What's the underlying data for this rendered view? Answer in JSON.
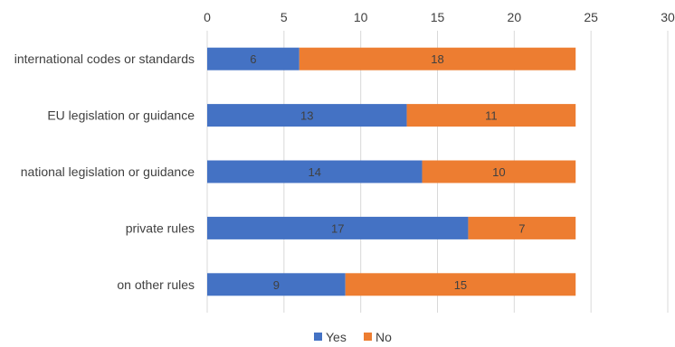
{
  "chart_data": {
    "type": "bar",
    "orientation": "horizontal",
    "stacked": true,
    "categories": [
      "international codes or standards",
      "EU legislation or guidance",
      "national legislation or guidance",
      "private rules",
      "on other rules"
    ],
    "series": [
      {
        "name": "Yes",
        "color": "#4472C4",
        "values": [
          6,
          13,
          14,
          17,
          9
        ]
      },
      {
        "name": "No",
        "color": "#ED7D31",
        "values": [
          18,
          11,
          10,
          7,
          15
        ]
      }
    ],
    "xlim": [
      0,
      30
    ],
    "xticks": [
      0,
      5,
      10,
      15,
      20,
      25,
      30
    ],
    "x_axis_position": "top",
    "grid": true,
    "legend_position": "bottom",
    "data_labels": true
  }
}
